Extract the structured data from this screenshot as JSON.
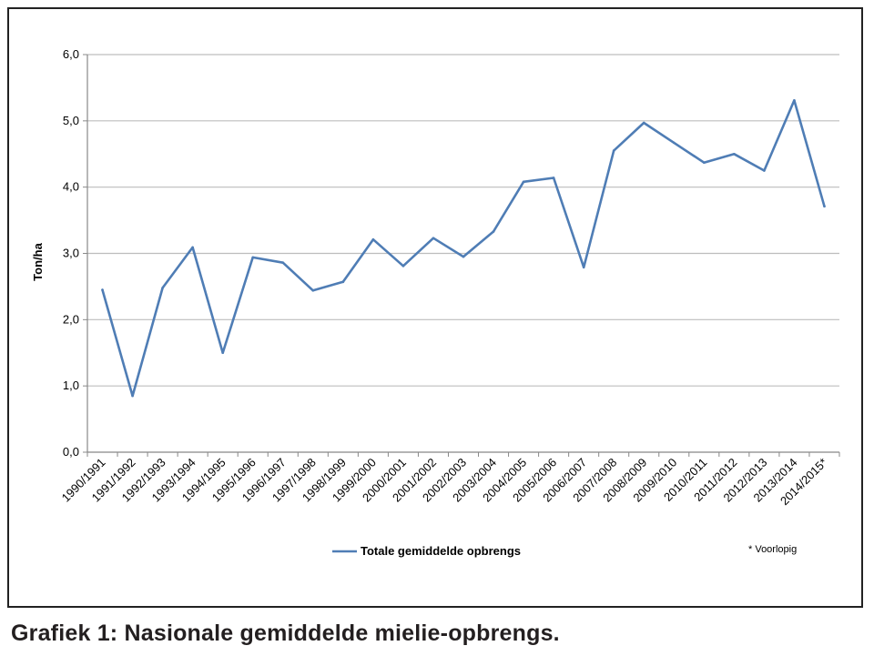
{
  "caption": "Grafiek 1: Nasionale gemiddelde mielie-opbrengs.",
  "footnote": "* Voorlopig",
  "chart_data": {
    "type": "line",
    "title": "",
    "xlabel": "",
    "ylabel": "Ton/ha",
    "ylim": [
      0,
      6
    ],
    "y_ticks": [
      "0,0",
      "1,0",
      "2,0",
      "3,0",
      "4,0",
      "5,0",
      "6,0"
    ],
    "grid": "horizontal",
    "legend_position": "bottom",
    "categories": [
      "1990/1991",
      "1991/1992",
      "1992/1993",
      "1993/1994",
      "1994/1995",
      "1995/1996",
      "1996/1997",
      "1997/1998",
      "1998/1999",
      "1999/2000",
      "2000/2001",
      "2001/2002",
      "2002/2003",
      "2003/2004",
      "2004/2005",
      "2005/2006",
      "2006/2007",
      "2007/2008",
      "2008/2009",
      "2009/2010",
      "2010/2011",
      "2011/2012",
      "2012/2013",
      "2013/2014",
      "2014/2015*"
    ],
    "series": [
      {
        "name": "Totale gemiddelde opbrengs",
        "color": "#4f7db5",
        "values": [
          2.45,
          0.85,
          2.48,
          3.09,
          1.5,
          2.94,
          2.86,
          2.44,
          2.57,
          3.21,
          2.81,
          3.23,
          2.95,
          3.33,
          4.08,
          4.14,
          2.79,
          4.55,
          4.97,
          4.67,
          4.37,
          4.5,
          4.25,
          5.31,
          3.71
        ]
      }
    ]
  },
  "colors": {
    "grid": "#bdbdbd",
    "axis": "#888888",
    "frame": "#222222"
  }
}
